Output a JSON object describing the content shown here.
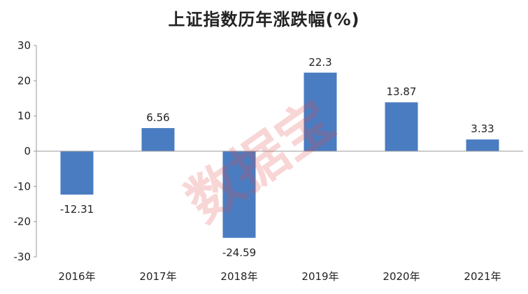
{
  "chart_data": {
    "type": "bar",
    "title": "上证指数历年涨跌幅(%)",
    "categories": [
      "2016年",
      "2017年",
      "2018年",
      "2019年",
      "2020年",
      "2021年"
    ],
    "values": [
      -12.31,
      6.56,
      -24.59,
      22.3,
      13.87,
      3.33
    ],
    "data_labels": [
      "-12.31",
      "6.56",
      "-24.59",
      "22.3",
      "13.87",
      "3.33"
    ],
    "ylim": [
      -30,
      30
    ],
    "yticks": [
      30,
      20,
      10,
      0,
      -10,
      -20,
      -30
    ],
    "xlabel": "",
    "ylabel": "",
    "grid": false,
    "legend": "none",
    "bar_color": "#4a7cc1"
  },
  "watermark": {
    "text": "数据宝",
    "color": "#e04b4b"
  }
}
